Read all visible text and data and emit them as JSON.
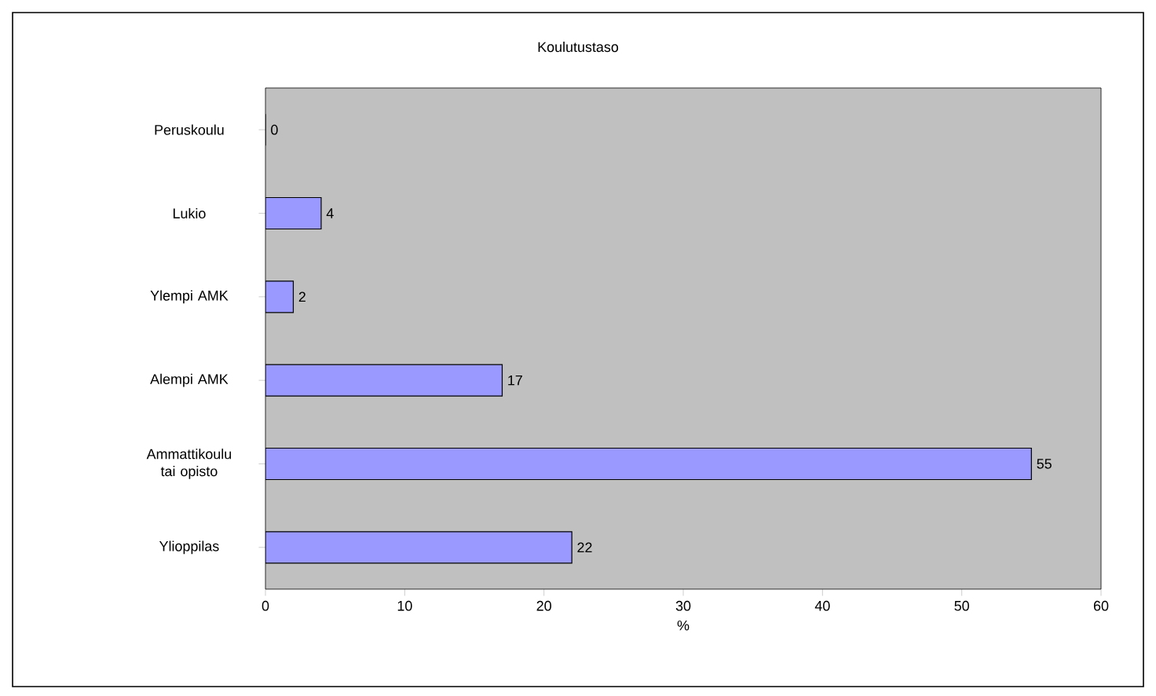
{
  "chart_data": {
    "type": "bar",
    "orientation": "horizontal",
    "title": "Koulutustaso",
    "xlabel": "%",
    "categories": [
      "Peruskoulu",
      "Lukio",
      "Ylempi AMK",
      "Alempi AMK",
      "Ammattikoulu tai opisto",
      "Ylioppilas"
    ],
    "values": [
      0,
      4,
      2,
      17,
      55,
      22
    ],
    "color": "#9999ff",
    "xlim": [
      0,
      60
    ],
    "xticks": [
      0,
      10,
      20,
      30,
      40,
      50,
      60
    ],
    "data_labels": true,
    "grid": false
  }
}
